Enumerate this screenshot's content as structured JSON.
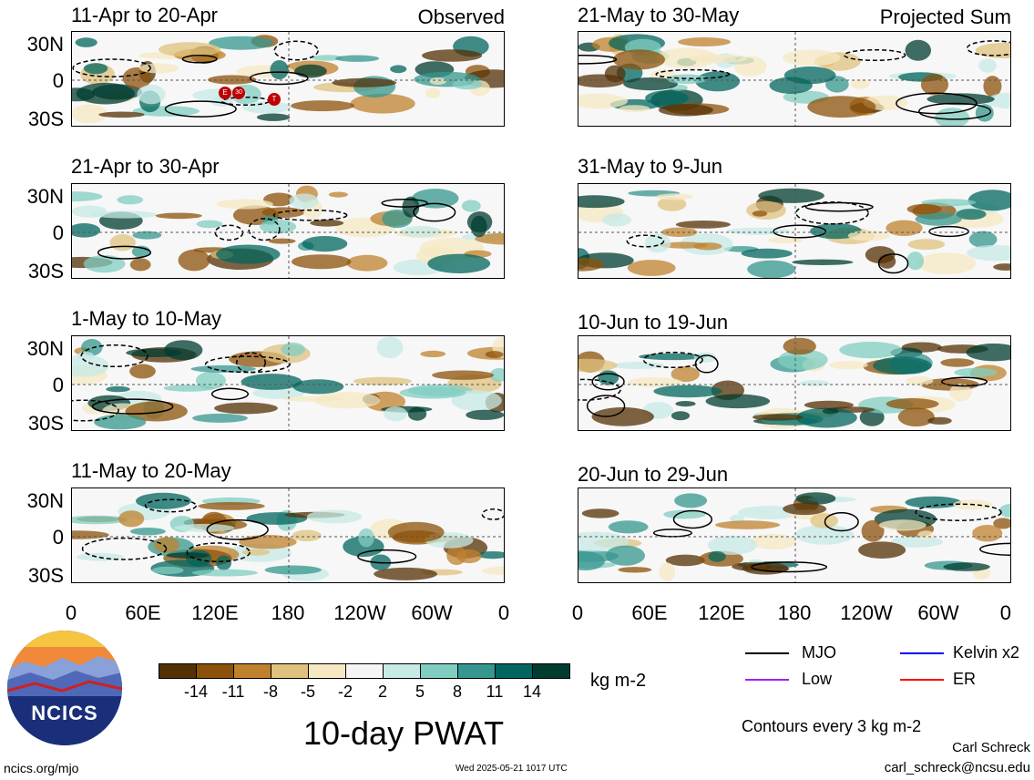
{
  "chart_data": {
    "type": "heatmap",
    "title": "10-day PWAT",
    "units": "kg m-2",
    "panels_left": [
      {
        "title": "11-Apr to 20-Apr",
        "label": "Observed"
      },
      {
        "title": "21-Apr to 30-Apr",
        "label": ""
      },
      {
        "title": "1-May to 10-May",
        "label": ""
      },
      {
        "title": "11-May to 20-May",
        "label": ""
      }
    ],
    "panels_right": [
      {
        "title": "21-May to 30-May",
        "label": "Projected Sum"
      },
      {
        "title": "31-May to 9-Jun",
        "label": ""
      },
      {
        "title": "10-Jun to 19-Jun",
        "label": ""
      },
      {
        "title": "20-Jun to 29-Jun",
        "label": ""
      }
    ],
    "y_tick_labels": [
      "30N",
      "0",
      "30S"
    ],
    "x_tick_labels": [
      "0",
      "60E",
      "120E",
      "180",
      "120W",
      "60W",
      "0"
    ],
    "colorbar": {
      "levels": [
        "-14",
        "-11",
        "-8",
        "-5",
        "-2",
        "2",
        "5",
        "8",
        "11",
        "14"
      ],
      "colors": [
        "#543005",
        "#8c510a",
        "#bf812d",
        "#dfc27d",
        "#f6e8c3",
        "#f5f5f5",
        "#c7eae5",
        "#80cdc1",
        "#35978f",
        "#01665e",
        "#003c30"
      ]
    },
    "tropical_storm_markers": [
      "E",
      "30",
      "T"
    ],
    "contour_note": "Contours every 3 kg m-2",
    "legend": [
      {
        "label": "MJO",
        "color": "#000000"
      },
      {
        "label": "Kelvin x2",
        "color": "#0000ff"
      },
      {
        "label": "Low",
        "color": "#a020f0"
      },
      {
        "label": "ER",
        "color": "#ff0000"
      }
    ]
  },
  "logo_text": "NCICS",
  "footer": {
    "site": "ncics.org/mjo",
    "timestamp": "Wed 2025-05-21 1017 UTC",
    "author": "Carl Schreck",
    "email": "carl_schreck@ncsu.edu"
  }
}
